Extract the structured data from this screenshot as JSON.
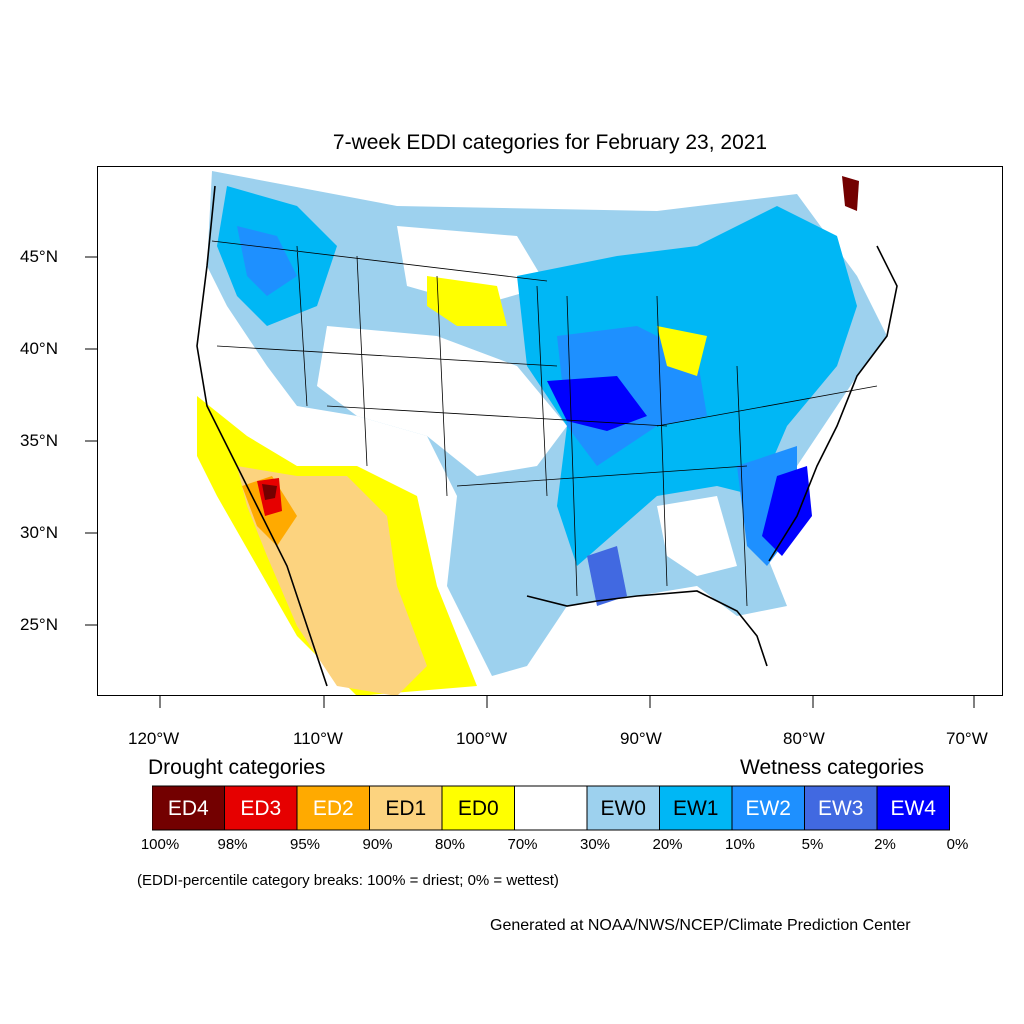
{
  "title": "7-week EDDI categories for February 23, 2021",
  "lat_labels": [
    "45°N",
    "40°N",
    "35°N",
    "30°N",
    "25°N"
  ],
  "lon_labels": [
    "120°W",
    "110°W",
    "100°W",
    "90°W",
    "80°W",
    "70°W"
  ],
  "legend": {
    "drought_heading": "Drought categories",
    "wetness_heading": "Wetness categories",
    "categories": [
      {
        "label": "ED4",
        "color": "#730000"
      },
      {
        "label": "ED3",
        "color": "#e60000"
      },
      {
        "label": "ED2",
        "color": "#ffaa00"
      },
      {
        "label": "ED1",
        "color": "#fcd37f"
      },
      {
        "label": "ED0",
        "color": "#ffff00"
      },
      {
        "label": "",
        "color": "#ffffff"
      },
      {
        "label": "EW0",
        "color": "#9dd1ee"
      },
      {
        "label": "EW1",
        "color": "#00b7f5"
      },
      {
        "label": "EW2",
        "color": "#1e90ff"
      },
      {
        "label": "EW3",
        "color": "#4169e1"
      },
      {
        "label": "EW4",
        "color": "#0000ff"
      }
    ],
    "percent_breaks": [
      "100%",
      "98%",
      "95%",
      "90%",
      "80%",
      "70%",
      "30%",
      "20%",
      "10%",
      "5%",
      "2%",
      "0%"
    ],
    "note": "(EDDI-percentile category breaks: 100% = driest; 0% = wettest)"
  },
  "credit": "Generated at NOAA/NWS/NCEP/Climate Prediction Center"
}
